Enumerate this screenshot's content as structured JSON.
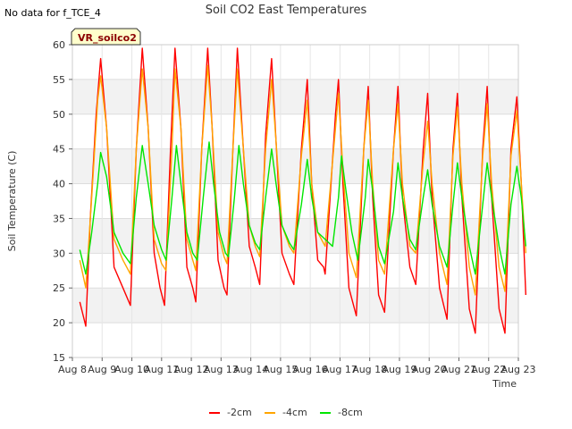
{
  "no_data_text": "No data for f_TCE_4",
  "chart_data": {
    "type": "line",
    "title": "Soil CO2 East Temperatures",
    "xlabel": "Time",
    "ylabel": "Soil Temperature (C)",
    "badge": "VR_soilco2",
    "ylim": [
      15,
      60
    ],
    "yticks": [
      15,
      20,
      25,
      30,
      35,
      40,
      45,
      50,
      55,
      60
    ],
    "xlim": [
      8,
      23
    ],
    "xticks": [
      8,
      9,
      10,
      11,
      12,
      13,
      14,
      15,
      16,
      17,
      18,
      19,
      20,
      21,
      22,
      23
    ],
    "xtick_labels": [
      "Aug 8",
      "Aug 9",
      "Aug 10",
      "Aug 11",
      "Aug 12",
      "Aug 13",
      "Aug 14",
      "Aug 15",
      "Aug 16",
      "Aug 17",
      "Aug 18",
      "Aug 19",
      "Aug 20",
      "Aug 21",
      "Aug 22",
      "Aug 23"
    ],
    "grid": true,
    "legend_position": "bottom-center",
    "series": [
      {
        "name": "-2cm",
        "color": "#ff0000",
        "data": [
          [
            8.25,
            23.0
          ],
          [
            8.45,
            19.5
          ],
          [
            8.6,
            35.0
          ],
          [
            8.8,
            50.0
          ],
          [
            8.95,
            58.0
          ],
          [
            9.15,
            48.0
          ],
          [
            9.4,
            28.0
          ],
          [
            9.7,
            25.0
          ],
          [
            9.95,
            22.5
          ],
          [
            10.15,
            45.0
          ],
          [
            10.35,
            59.5
          ],
          [
            10.55,
            48.0
          ],
          [
            10.75,
            30.0
          ],
          [
            10.95,
            25.0
          ],
          [
            11.1,
            22.5
          ],
          [
            11.3,
            45.0
          ],
          [
            11.45,
            59.5
          ],
          [
            11.65,
            48.0
          ],
          [
            11.85,
            28.0
          ],
          [
            12.05,
            25.0
          ],
          [
            12.15,
            23.0
          ],
          [
            12.35,
            45.0
          ],
          [
            12.55,
            59.5
          ],
          [
            12.7,
            48.0
          ],
          [
            12.9,
            29.0
          ],
          [
            13.1,
            25.0
          ],
          [
            13.2,
            24.0
          ],
          [
            13.4,
            45.0
          ],
          [
            13.55,
            59.5
          ],
          [
            13.75,
            45.0
          ],
          [
            13.95,
            31.0
          ],
          [
            14.15,
            28.0
          ],
          [
            14.3,
            25.5
          ],
          [
            14.5,
            47.0
          ],
          [
            14.7,
            58.0
          ],
          [
            14.85,
            46.0
          ],
          [
            15.05,
            30.0
          ],
          [
            15.3,
            27.0
          ],
          [
            15.45,
            25.5
          ],
          [
            15.7,
            45.0
          ],
          [
            15.9,
            55.0
          ],
          [
            16.05,
            40.0
          ],
          [
            16.25,
            29.0
          ],
          [
            16.45,
            28.0
          ],
          [
            16.5,
            27.0
          ],
          [
            16.85,
            50.0
          ],
          [
            16.95,
            55.0
          ],
          [
            17.1,
            40.0
          ],
          [
            17.3,
            25.0
          ],
          [
            17.55,
            21.0
          ],
          [
            17.8,
            45.0
          ],
          [
            17.95,
            54.0
          ],
          [
            18.1,
            38.0
          ],
          [
            18.3,
            24.0
          ],
          [
            18.5,
            21.5
          ],
          [
            18.8,
            45.0
          ],
          [
            18.95,
            54.0
          ],
          [
            19.1,
            38.0
          ],
          [
            19.35,
            28.0
          ],
          [
            19.55,
            25.5
          ],
          [
            19.8,
            45.0
          ],
          [
            19.95,
            53.0
          ],
          [
            20.1,
            38.0
          ],
          [
            20.35,
            25.0
          ],
          [
            20.6,
            20.5
          ],
          [
            20.8,
            45.0
          ],
          [
            20.95,
            53.0
          ],
          [
            21.1,
            38.0
          ],
          [
            21.35,
            22.0
          ],
          [
            21.55,
            18.5
          ],
          [
            21.8,
            45.0
          ],
          [
            21.95,
            54.0
          ],
          [
            22.1,
            38.0
          ],
          [
            22.35,
            22.0
          ],
          [
            22.55,
            18.5
          ],
          [
            22.75,
            45.0
          ],
          [
            22.95,
            52.5
          ],
          [
            23.1,
            40.0
          ],
          [
            23.25,
            24.0
          ]
        ]
      },
      {
        "name": "-4cm",
        "color": "#ffa500",
        "data": [
          [
            8.25,
            29.0
          ],
          [
            8.45,
            25.0
          ],
          [
            8.65,
            38.0
          ],
          [
            8.85,
            52.0
          ],
          [
            8.95,
            55.5
          ],
          [
            9.15,
            48.0
          ],
          [
            9.4,
            32.0
          ],
          [
            9.7,
            29.0
          ],
          [
            9.95,
            27.0
          ],
          [
            10.15,
            45.0
          ],
          [
            10.35,
            56.5
          ],
          [
            10.55,
            48.0
          ],
          [
            10.75,
            32.0
          ],
          [
            11.0,
            28.5
          ],
          [
            11.15,
            27.5
          ],
          [
            11.35,
            45.0
          ],
          [
            11.45,
            56.5
          ],
          [
            11.65,
            48.0
          ],
          [
            11.85,
            32.0
          ],
          [
            12.05,
            29.0
          ],
          [
            12.15,
            27.5
          ],
          [
            12.35,
            45.0
          ],
          [
            12.55,
            57.0
          ],
          [
            12.7,
            48.0
          ],
          [
            12.9,
            33.0
          ],
          [
            13.1,
            29.5
          ],
          [
            13.2,
            28.5
          ],
          [
            13.4,
            45.0
          ],
          [
            13.55,
            56.5
          ],
          [
            13.75,
            45.0
          ],
          [
            13.95,
            34.0
          ],
          [
            14.15,
            31.0
          ],
          [
            14.3,
            29.5
          ],
          [
            14.5,
            45.0
          ],
          [
            14.7,
            55.0
          ],
          [
            14.85,
            46.0
          ],
          [
            15.05,
            34.0
          ],
          [
            15.3,
            31.0
          ],
          [
            15.45,
            30.0
          ],
          [
            15.7,
            44.0
          ],
          [
            15.9,
            52.0
          ],
          [
            16.05,
            40.0
          ],
          [
            16.25,
            33.0
          ],
          [
            16.5,
            31.0
          ],
          [
            16.85,
            48.0
          ],
          [
            16.95,
            53.0
          ],
          [
            17.1,
            42.0
          ],
          [
            17.3,
            30.0
          ],
          [
            17.55,
            26.5
          ],
          [
            17.8,
            45.0
          ],
          [
            17.95,
            52.0
          ],
          [
            18.1,
            40.0
          ],
          [
            18.3,
            29.0
          ],
          [
            18.5,
            27.0
          ],
          [
            18.8,
            45.0
          ],
          [
            18.95,
            51.5
          ],
          [
            19.1,
            40.0
          ],
          [
            19.35,
            31.0
          ],
          [
            19.55,
            30.0
          ],
          [
            19.8,
            43.0
          ],
          [
            19.95,
            49.0
          ],
          [
            20.1,
            40.0
          ],
          [
            20.35,
            30.0
          ],
          [
            20.6,
            25.5
          ],
          [
            20.8,
            44.0
          ],
          [
            20.95,
            51.0
          ],
          [
            21.1,
            40.0
          ],
          [
            21.35,
            28.0
          ],
          [
            21.55,
            24.0
          ],
          [
            21.8,
            44.0
          ],
          [
            21.95,
            51.5
          ],
          [
            22.1,
            40.0
          ],
          [
            22.35,
            28.0
          ],
          [
            22.55,
            24.5
          ],
          [
            22.75,
            44.0
          ],
          [
            22.95,
            50.5
          ],
          [
            23.1,
            40.0
          ],
          [
            23.25,
            30.0
          ]
        ]
      },
      {
        "name": "-8cm",
        "color": "#00e600",
        "data": [
          [
            8.25,
            30.5
          ],
          [
            8.45,
            27.0
          ],
          [
            8.65,
            33.0
          ],
          [
            8.85,
            40.0
          ],
          [
            8.95,
            44.5
          ],
          [
            9.15,
            41.0
          ],
          [
            9.4,
            33.0
          ],
          [
            9.7,
            30.0
          ],
          [
            9.95,
            28.5
          ],
          [
            10.15,
            38.0
          ],
          [
            10.35,
            45.5
          ],
          [
            10.55,
            40.0
          ],
          [
            10.75,
            34.0
          ],
          [
            11.0,
            30.5
          ],
          [
            11.15,
            29.0
          ],
          [
            11.35,
            38.0
          ],
          [
            11.5,
            45.5
          ],
          [
            11.65,
            40.0
          ],
          [
            11.85,
            33.0
          ],
          [
            12.05,
            30.0
          ],
          [
            12.2,
            29.0
          ],
          [
            12.4,
            38.0
          ],
          [
            12.6,
            46.0
          ],
          [
            12.75,
            40.0
          ],
          [
            12.95,
            33.0
          ],
          [
            13.15,
            30.0
          ],
          [
            13.25,
            29.5
          ],
          [
            13.45,
            38.0
          ],
          [
            13.6,
            45.5
          ],
          [
            13.75,
            40.0
          ],
          [
            13.95,
            34.0
          ],
          [
            14.15,
            31.5
          ],
          [
            14.3,
            30.5
          ],
          [
            14.5,
            38.0
          ],
          [
            14.7,
            45.0
          ],
          [
            14.85,
            40.0
          ],
          [
            15.05,
            34.0
          ],
          [
            15.3,
            31.5
          ],
          [
            15.45,
            30.5
          ],
          [
            15.7,
            37.0
          ],
          [
            15.9,
            43.5
          ],
          [
            16.05,
            38.0
          ],
          [
            16.25,
            33.0
          ],
          [
            16.5,
            32.0
          ],
          [
            16.75,
            31.0
          ],
          [
            16.95,
            38.0
          ],
          [
            17.05,
            44.0
          ],
          [
            17.2,
            39.0
          ],
          [
            17.4,
            33.0
          ],
          [
            17.6,
            29.0
          ],
          [
            17.85,
            38.0
          ],
          [
            17.95,
            43.5
          ],
          [
            18.1,
            39.0
          ],
          [
            18.3,
            31.0
          ],
          [
            18.5,
            28.5
          ],
          [
            18.8,
            36.0
          ],
          [
            18.95,
            43.0
          ],
          [
            19.1,
            38.0
          ],
          [
            19.35,
            32.0
          ],
          [
            19.55,
            30.5
          ],
          [
            19.8,
            38.0
          ],
          [
            19.95,
            42.0
          ],
          [
            20.1,
            37.0
          ],
          [
            20.35,
            31.0
          ],
          [
            20.6,
            28.0
          ],
          [
            20.8,
            37.0
          ],
          [
            20.95,
            43.0
          ],
          [
            21.1,
            38.0
          ],
          [
            21.35,
            31.0
          ],
          [
            21.55,
            27.0
          ],
          [
            21.8,
            37.0
          ],
          [
            21.95,
            43.0
          ],
          [
            22.1,
            38.0
          ],
          [
            22.35,
            31.0
          ],
          [
            22.55,
            27.0
          ],
          [
            22.75,
            37.0
          ],
          [
            22.95,
            42.5
          ],
          [
            23.1,
            38.0
          ],
          [
            23.25,
            31.0
          ]
        ]
      }
    ]
  }
}
